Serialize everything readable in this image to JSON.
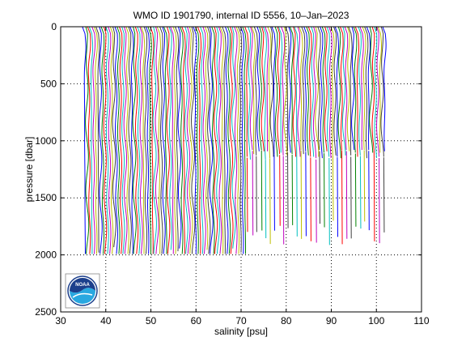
{
  "chart_data": {
    "type": "line",
    "title": "WMO ID 1901790, internal ID 5556, 10–Jan–2023",
    "xlabel": "salinity [psu]",
    "ylabel": "pressure [dbar]",
    "xlim": [
      30,
      110
    ],
    "ylim": [
      2500,
      0
    ],
    "y_reversed": true,
    "xticks": [
      30,
      40,
      50,
      60,
      70,
      80,
      90,
      100,
      110
    ],
    "yticks": [
      0,
      500,
      1000,
      1500,
      2000,
      2500
    ],
    "grid": "dotted",
    "colors": [
      "#0000ff",
      "#008000",
      "#ff0000",
      "#00bfbf",
      "#bf00bf",
      "#bfbf00",
      "#404040"
    ],
    "series_note": "Waterfall of salinity profiles, each offset by about 0.5 psu",
    "profiles": {
      "start_salinity": 35.2,
      "offset_per_profile": 0.5,
      "count": 134,
      "deep_group": {
        "first": 0,
        "last": 71,
        "max_pressure": 2000
      },
      "shallow_group": {
        "first": 72,
        "last": 133,
        "max_pressure_min": 1080,
        "max_pressure_max": 1170,
        "tail_max_pressure": 1960
      }
    }
  },
  "logo": {
    "text": "NOAA",
    "name": "noaa-logo"
  }
}
